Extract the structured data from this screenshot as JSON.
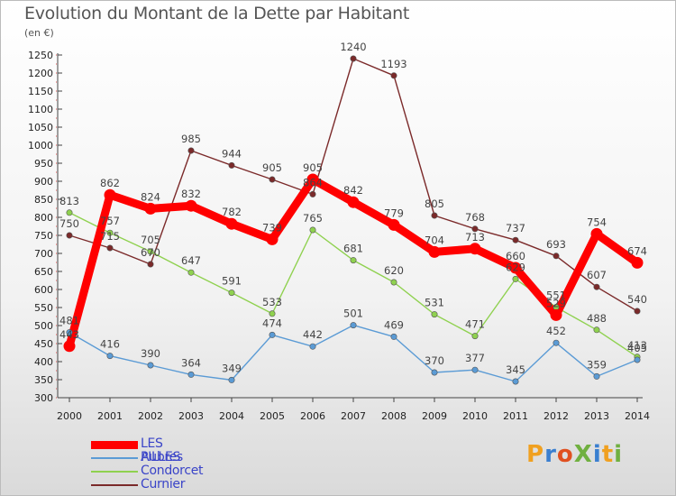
{
  "title": "Evolution du Montant de la Dette par Habitant",
  "unit": "(en €)",
  "brand": "ProXiti",
  "colors": {
    "les_pilles": "#ff0000",
    "aubres": "#5b9bd5",
    "condorcet": "#8fd14f",
    "curnier": "#7b2a2a"
  },
  "chart_data": {
    "type": "line",
    "x": [
      "2000",
      "2001",
      "2002",
      "2003",
      "2004",
      "2005",
      "2006",
      "2007",
      "2008",
      "2009",
      "2010",
      "2011",
      "2012",
      "2013",
      "2014"
    ],
    "ylim": [
      300,
      1250
    ],
    "yticks": [
      300,
      350,
      400,
      450,
      500,
      550,
      600,
      650,
      700,
      750,
      800,
      850,
      900,
      950,
      1000,
      1050,
      1100,
      1150,
      1200,
      1250
    ],
    "grid": false,
    "legend_position": "bottom-left",
    "series": [
      {
        "name": "LES PILLES",
        "key": "les_pilles",
        "values": [
          443,
          862,
          824,
          832,
          782,
          739,
          905,
          842,
          779,
          704,
          713,
          660,
          529,
          754,
          674
        ]
      },
      {
        "name": "Aubres",
        "key": "aubres",
        "values": [
          481,
          416,
          390,
          364,
          349,
          474,
          442,
          501,
          469,
          370,
          377,
          345,
          452,
          359,
          405
        ]
      },
      {
        "name": "Condorcet",
        "key": "condorcet",
        "values": [
          813,
          757,
          705,
          647,
          591,
          533,
          765,
          681,
          620,
          531,
          471,
          629,
          551,
          488,
          413
        ]
      },
      {
        "name": "Curnier",
        "key": "curnier",
        "values": [
          750,
          715,
          670,
          985,
          944,
          905,
          864,
          1240,
          1193,
          805,
          768,
          737,
          693,
          607,
          540
        ]
      }
    ]
  }
}
